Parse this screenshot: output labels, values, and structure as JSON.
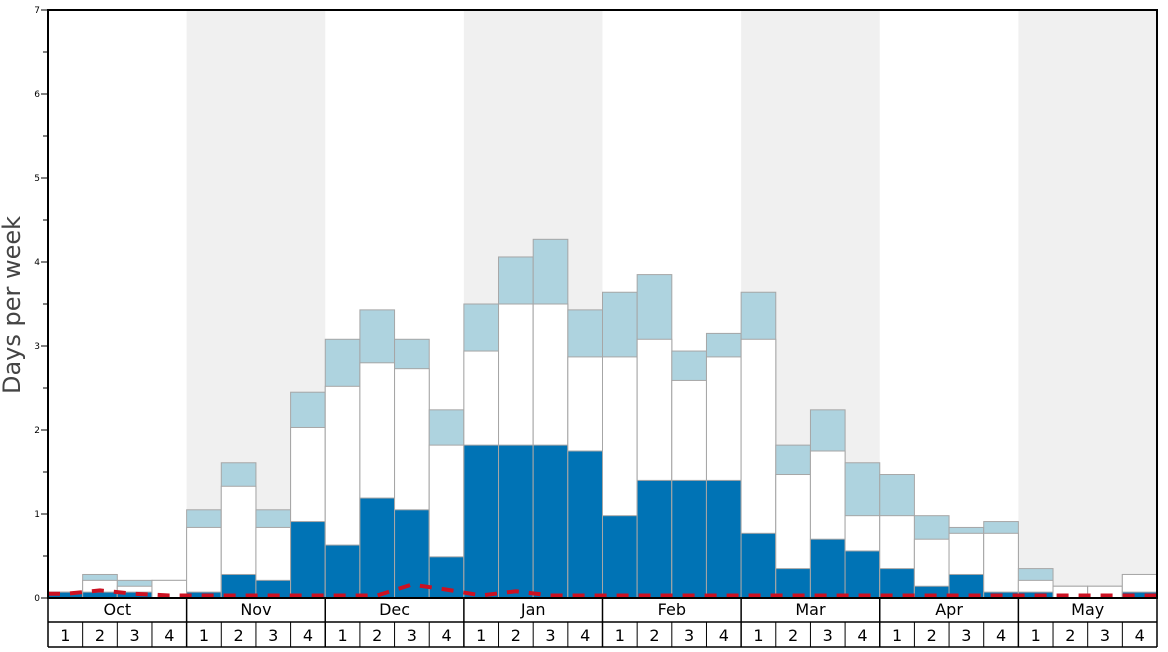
{
  "chart_data": {
    "type": "bar",
    "ylabel": "Days per week",
    "xlabel": "",
    "ylim": [
      0,
      7
    ],
    "y_major_ticks": [
      0,
      1,
      2,
      3,
      4,
      5,
      6,
      7
    ],
    "grid": false,
    "months": [
      "Oct",
      "Nov",
      "Dec",
      "Jan",
      "Feb",
      "Mar",
      "Apr",
      "May"
    ],
    "weeks": [
      "1",
      "2",
      "3",
      "4"
    ],
    "shaded_months": [
      "Nov",
      "Jan",
      "Mar",
      "May"
    ],
    "colors": {
      "bottom": "#0073b5",
      "middle": "#ffffff",
      "top": "#aed3df",
      "dashed_line": "#cc1122",
      "band": "#f0f0f0",
      "bar_edge": "#a6a6a6"
    },
    "series": [
      {
        "values": [
          0.07,
          0.07,
          0.07,
          0.0,
          0.07,
          0.28,
          0.21,
          0.91,
          0.63,
          1.19,
          1.05,
          0.49,
          1.82,
          1.82,
          1.82,
          1.75,
          0.98,
          1.4,
          1.4,
          1.4,
          0.77,
          0.35,
          0.7,
          0.56,
          0.35,
          0.14,
          0.28,
          0.07,
          0.07,
          0.0,
          0.0,
          0.07
        ]
      },
      {
        "values": [
          0.07,
          0.21,
          0.14,
          0.21,
          0.84,
          1.33,
          0.84,
          2.03,
          2.52,
          2.8,
          2.73,
          1.82,
          2.94,
          3.5,
          3.5,
          2.87,
          2.87,
          3.08,
          2.59,
          2.87,
          3.08,
          1.47,
          1.75,
          0.98,
          0.98,
          0.7,
          0.77,
          0.77,
          0.21,
          0.14,
          0.14,
          0.28
        ]
      },
      {
        "values": [
          0.07,
          0.28,
          0.21,
          0.21,
          1.05,
          1.61,
          1.05,
          2.45,
          3.08,
          3.43,
          3.08,
          2.24,
          3.5,
          4.06,
          4.27,
          3.43,
          3.64,
          3.85,
          2.94,
          3.15,
          3.64,
          1.82,
          2.24,
          1.61,
          1.47,
          0.98,
          0.84,
          0.91,
          0.35,
          0.14,
          0.14,
          0.28
        ]
      },
      {
        "values": [
          0.05,
          0.09,
          0.05,
          0.03,
          0.03,
          0.03,
          0.03,
          0.03,
          0.03,
          0.03,
          0.16,
          0.1,
          0.03,
          0.08,
          0.03,
          0.03,
          0.03,
          0.03,
          0.03,
          0.03,
          0.03,
          0.03,
          0.03,
          0.03,
          0.03,
          0.03,
          0.03,
          0.03,
          0.03,
          0.03,
          0.03,
          0.03
        ]
      }
    ]
  }
}
